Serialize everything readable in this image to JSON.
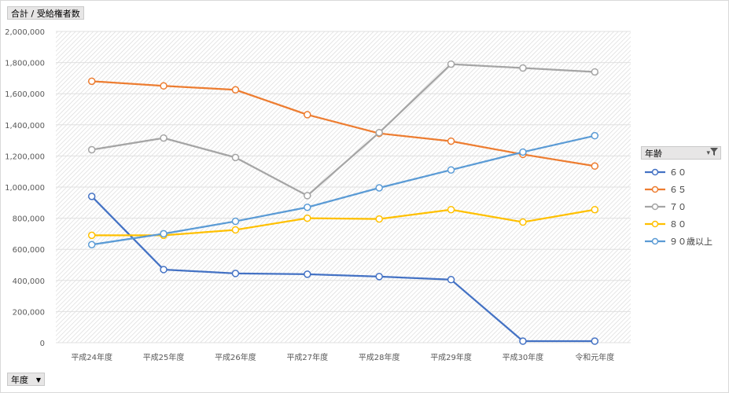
{
  "value_field_button": "合計 / 受給権者数",
  "axis_field_button": "年度",
  "axis_field_dropdown_icon": "▼",
  "legend": {
    "title": "年齢",
    "filter_icon": "filter-icon"
  },
  "colors": {
    "60": "#4472c4",
    "65": "#ed7d31",
    "70": "#a5a5a5",
    "80": "#ffc000",
    "90": "#5b9bd5"
  },
  "chart_data": {
    "type": "line",
    "categories": [
      "平成24年度",
      "平成25年度",
      "平成26年度",
      "平成27年度",
      "平成28年度",
      "平成29年度",
      "平成30年度",
      "令和元年度"
    ],
    "ylim": [
      0,
      2000000
    ],
    "yticks": [
      "2,000,000",
      "1,800,000",
      "1,600,000",
      "1,400,000",
      "1,200,000",
      "1,000,000",
      "800,000",
      "600,000",
      "400,000",
      "200,000",
      "0"
    ],
    "ytick_values": [
      2000000,
      1800000,
      1600000,
      1400000,
      1200000,
      1000000,
      800000,
      600000,
      400000,
      200000,
      0
    ],
    "grid": true,
    "legend_position": "right",
    "series": [
      {
        "name": "６０",
        "color_key": "60",
        "values": [
          940000,
          470000,
          445000,
          440000,
          425000,
          405000,
          10000,
          10000
        ]
      },
      {
        "name": "６５",
        "color_key": "65",
        "values": [
          1680000,
          1650000,
          1625000,
          1465000,
          1345000,
          1295000,
          1210000,
          1135000
        ]
      },
      {
        "name": "７０",
        "color_key": "70",
        "values": [
          1240000,
          1315000,
          1190000,
          945000,
          1350000,
          1790000,
          1765000,
          1740000
        ]
      },
      {
        "name": "８０",
        "color_key": "80",
        "values": [
          690000,
          690000,
          725000,
          800000,
          795000,
          855000,
          775000,
          855000
        ]
      },
      {
        "name": "９０歳以上",
        "color_key": "90",
        "values": [
          630000,
          700000,
          780000,
          870000,
          995000,
          1110000,
          1225000,
          1330000
        ]
      }
    ]
  }
}
